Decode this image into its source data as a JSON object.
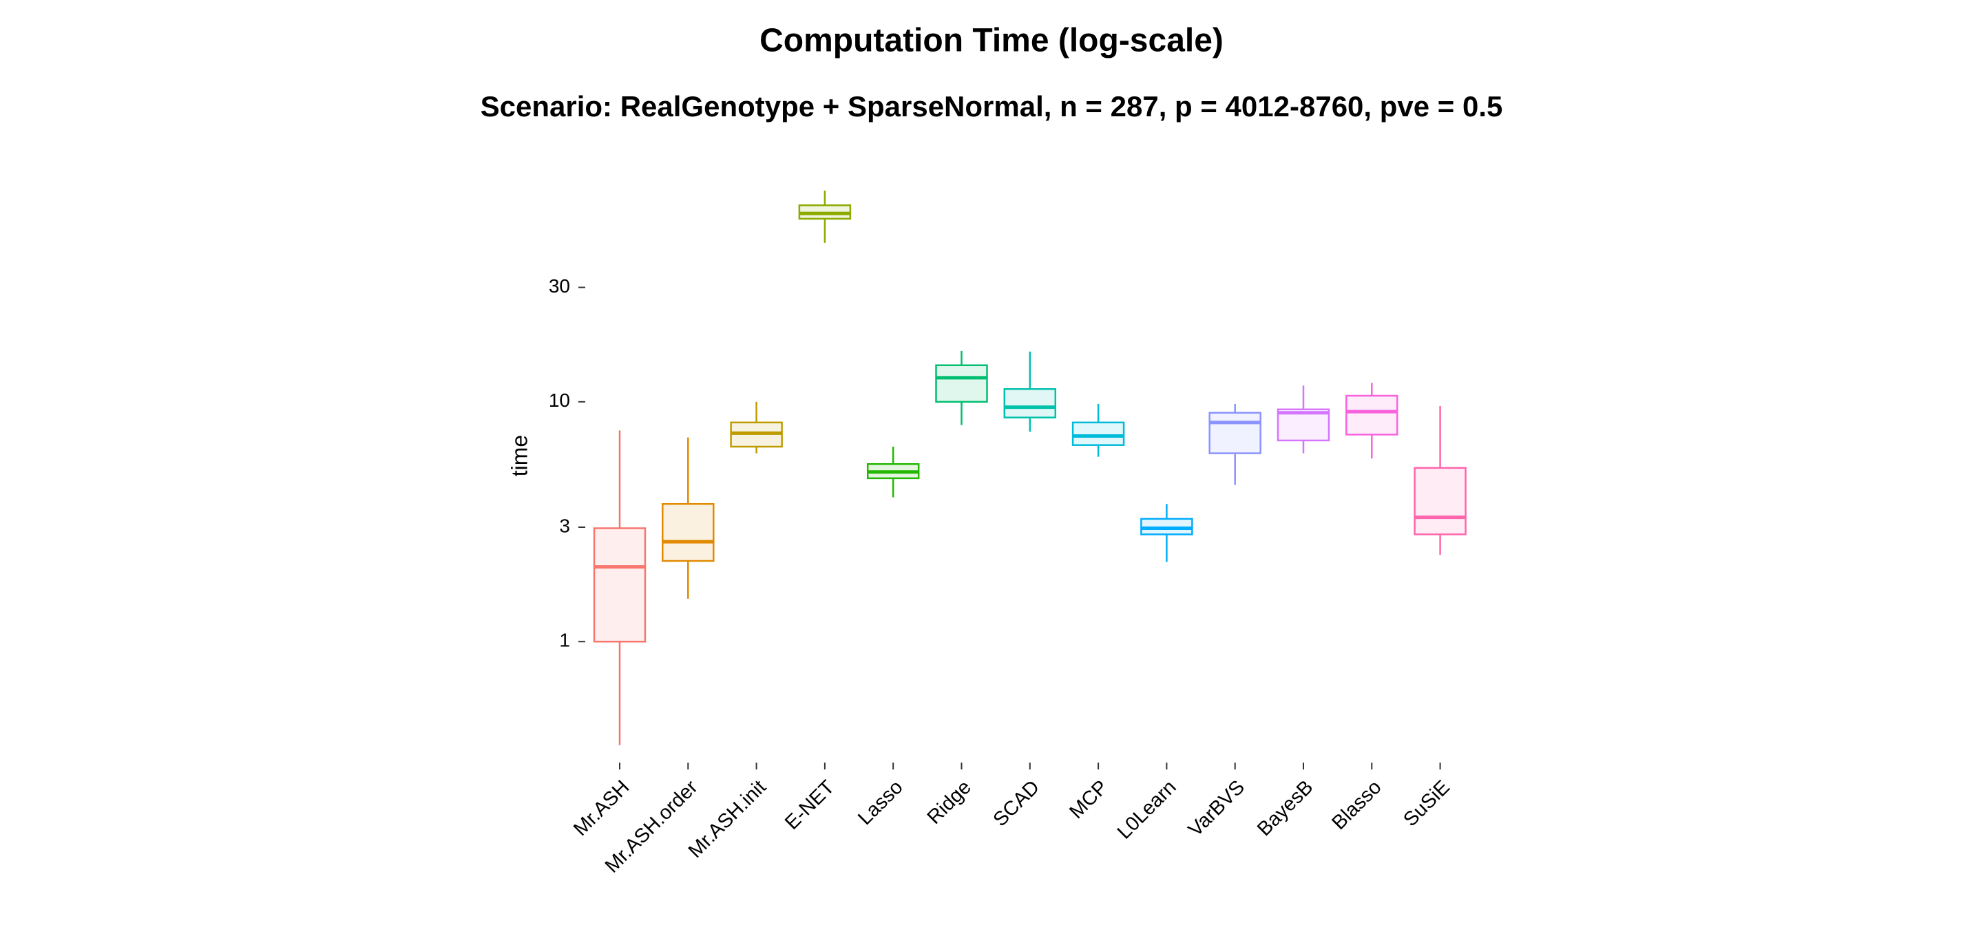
{
  "chart_data": {
    "type": "box",
    "title": "Computation Time (log-scale)",
    "subtitle": "Scenario: RealGenotype + SparseNormal, n = 287, p = 4012-8760, pve = 0.5",
    "ylabel": "time",
    "xlabel": "",
    "y_scale": "log10",
    "ylim": [
      0.33,
      105
    ],
    "y_ticks": [
      1,
      3,
      10,
      30
    ],
    "y_tick_labels": [
      "1",
      "3",
      "10",
      "30"
    ],
    "grid": false,
    "legend": "none",
    "categories": [
      "Mr.ASH",
      "Mr.ASH.order",
      "Mr.ASH.init",
      "E-NET",
      "Lasso",
      "Ridge",
      "SCAD",
      "MCP",
      "L0Learn",
      "VarBVS",
      "BayesB",
      "Blasso",
      "SuSiE"
    ],
    "series": [
      {
        "category": "Mr.ASH",
        "color": "#F8766D",
        "whisker_low": 0.37,
        "q1": 1.0,
        "median": 2.05,
        "q3": 2.97,
        "whisker_high": 7.6
      },
      {
        "category": "Mr.ASH.order",
        "color": "#E18A00",
        "whisker_low": 1.51,
        "q1": 2.17,
        "median": 2.61,
        "q3": 3.75,
        "whisker_high": 7.1
      },
      {
        "category": "Mr.ASH.init",
        "color": "#BE9C00",
        "whisker_low": 6.1,
        "q1": 6.5,
        "median": 7.4,
        "q3": 8.2,
        "whisker_high": 10.0
      },
      {
        "category": "E-NET",
        "color": "#8CAB00",
        "whisker_low": 46,
        "q1": 58,
        "median": 61,
        "q3": 66,
        "whisker_high": 76
      },
      {
        "category": "Lasso",
        "color": "#24B700",
        "whisker_low": 4.0,
        "q1": 4.8,
        "median": 5.1,
        "q3": 5.5,
        "whisker_high": 6.5
      },
      {
        "category": "Ridge",
        "color": "#00BE70",
        "whisker_low": 8.0,
        "q1": 10.0,
        "median": 12.6,
        "q3": 14.2,
        "whisker_high": 16.3
      },
      {
        "category": "SCAD",
        "color": "#00C1AB",
        "whisker_low": 7.5,
        "q1": 8.6,
        "median": 9.5,
        "q3": 11.3,
        "whisker_high": 16.2
      },
      {
        "category": "MCP",
        "color": "#00BBDA",
        "whisker_low": 5.9,
        "q1": 6.6,
        "median": 7.2,
        "q3": 8.2,
        "whisker_high": 9.8
      },
      {
        "category": "L0Learn",
        "color": "#00ACFC",
        "whisker_low": 2.15,
        "q1": 2.8,
        "median": 2.97,
        "q3": 3.25,
        "whisker_high": 3.75
      },
      {
        "category": "VarBVS",
        "color": "#8B93FF",
        "whisker_low": 4.5,
        "q1": 6.1,
        "median": 8.2,
        "q3": 9.0,
        "whisker_high": 9.8
      },
      {
        "category": "BayesB",
        "color": "#D575FE",
        "whisker_low": 6.1,
        "q1": 6.9,
        "median": 9.0,
        "q3": 9.3,
        "whisker_high": 11.7
      },
      {
        "category": "Blasso",
        "color": "#F962DD",
        "whisker_low": 5.8,
        "q1": 7.3,
        "median": 9.1,
        "q3": 10.6,
        "whisker_high": 12.0
      },
      {
        "category": "SuSiE",
        "color": "#FF65AC",
        "whisker_low": 2.3,
        "q1": 2.8,
        "median": 3.3,
        "q3": 5.3,
        "whisker_high": 9.6
      }
    ]
  }
}
